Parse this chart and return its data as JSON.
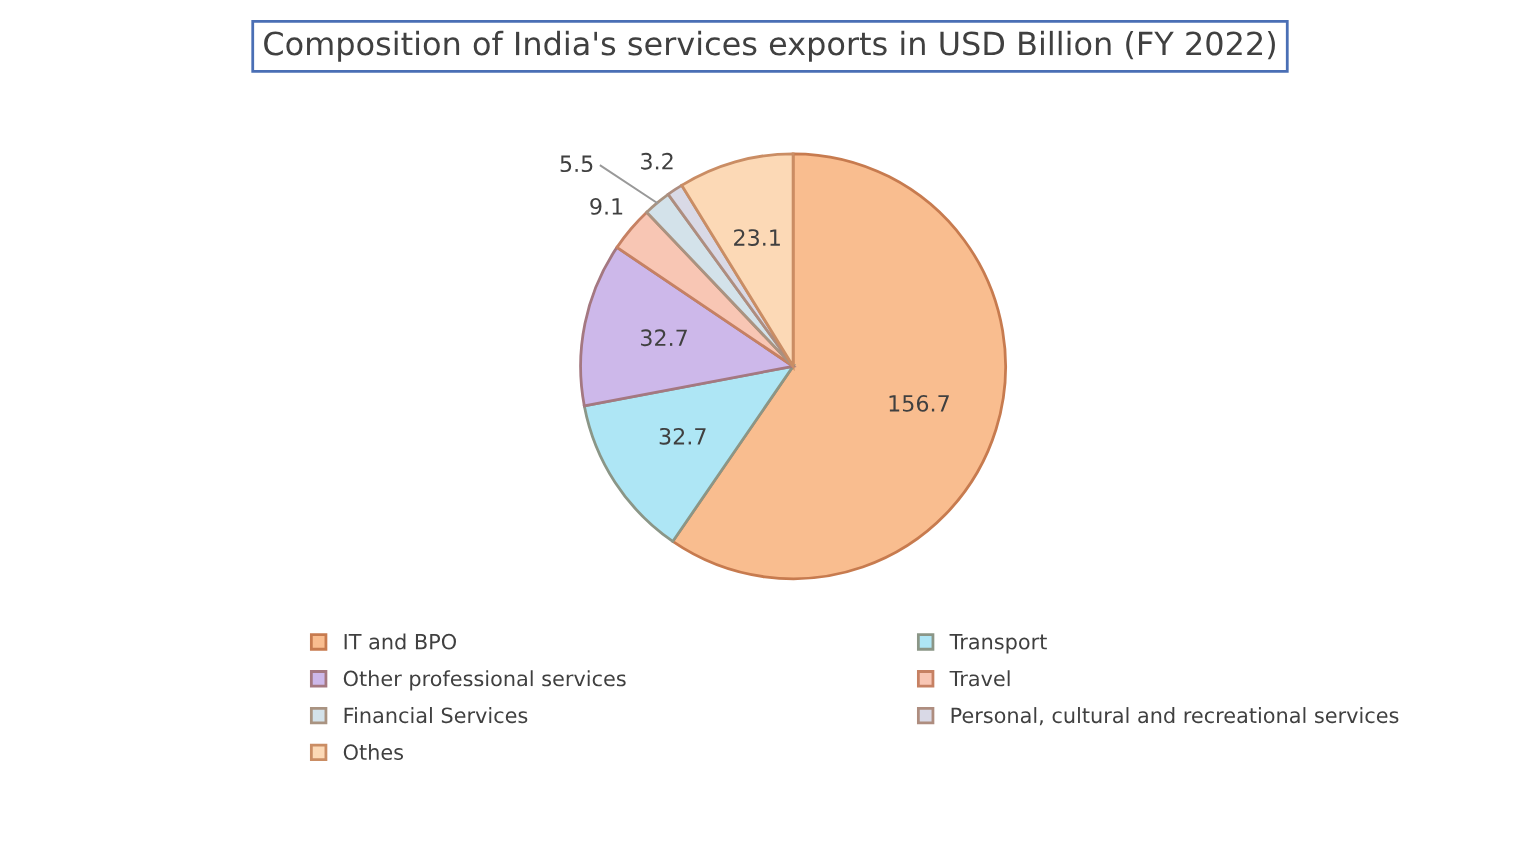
{
  "chart_data": {
    "type": "pie",
    "title": "Composition of India's services exports in USD Billion (FY 2022)",
    "categories": [
      "IT and BPO",
      "Transport",
      "Other professional services",
      "Travel",
      "Financial Services",
      "Personal, cultural and recreational services",
      "Othes"
    ],
    "values": [
      156.7,
      32.7,
      32.7,
      9.1,
      5.5,
      3.2,
      23.1
    ],
    "colors": [
      "#f9bd8f",
      "#aee6f5",
      "#cdb8ea",
      "#f8c6b4",
      "#d3e2ea",
      "#d9d9e6",
      "#fcd9b6"
    ],
    "data_labels": true,
    "legend": "bottom"
  }
}
